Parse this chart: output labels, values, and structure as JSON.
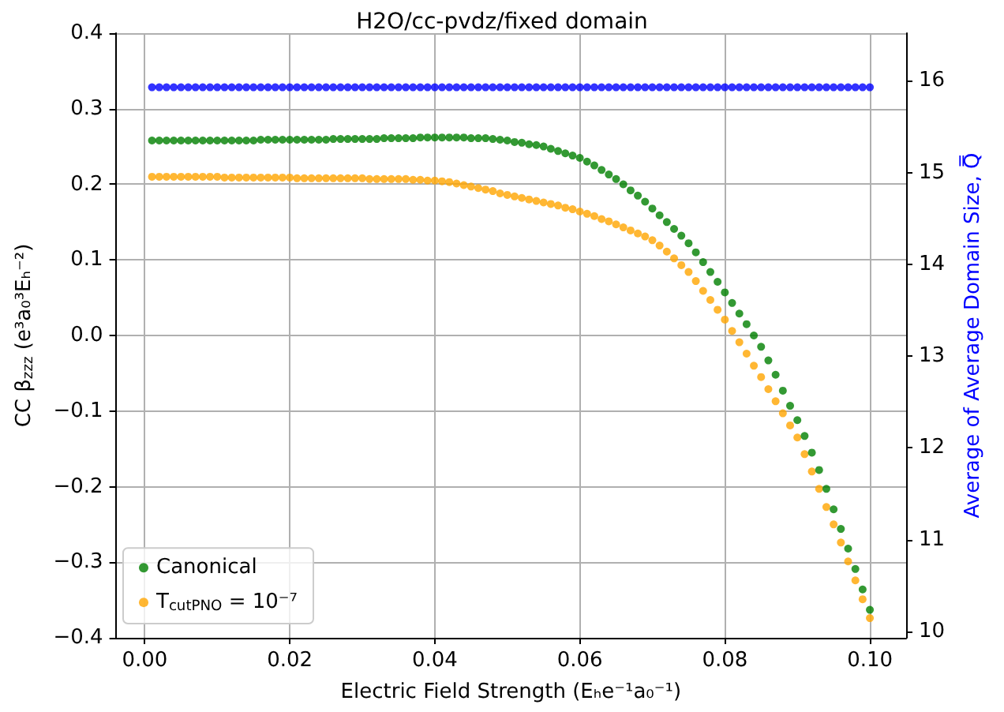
{
  "chart_data": {
    "type": "scatter",
    "title": "H2O/cc-pvdz/fixed domain",
    "xlabel": "Electric Field Strength (Eₕe⁻¹a₀⁻¹)",
    "ylabel": "CC β$_{zzz}$ (e³a₀³Eₕ⁻²)",
    "y2label": "Average of Average Domain Size, Q̿",
    "x": [
      0.001,
      0.002,
      0.003,
      0.004,
      0.005,
      0.006,
      0.007,
      0.008,
      0.009,
      0.01,
      0.011,
      0.012,
      0.013,
      0.014,
      0.015,
      0.016,
      0.017,
      0.018,
      0.019,
      0.02,
      0.021,
      0.022,
      0.023,
      0.024,
      0.025,
      0.026,
      0.027,
      0.028,
      0.029,
      0.03,
      0.031,
      0.032,
      0.033,
      0.034,
      0.035,
      0.036,
      0.037,
      0.038,
      0.039,
      0.04,
      0.041,
      0.042,
      0.043,
      0.044,
      0.045,
      0.046,
      0.047,
      0.048,
      0.049,
      0.05,
      0.051,
      0.052,
      0.053,
      0.054,
      0.055,
      0.056,
      0.057,
      0.058,
      0.059,
      0.06,
      0.061,
      0.062,
      0.063,
      0.064,
      0.065,
      0.066,
      0.067,
      0.068,
      0.069,
      0.07,
      0.071,
      0.072,
      0.073,
      0.074,
      0.075,
      0.076,
      0.077,
      0.078,
      0.079,
      0.08,
      0.081,
      0.082,
      0.083,
      0.084,
      0.085,
      0.086,
      0.087,
      0.088,
      0.089,
      0.09,
      0.091,
      0.092,
      0.093,
      0.094,
      0.095,
      0.096,
      0.097,
      0.098,
      0.099,
      0.1
    ],
    "series": [
      {
        "name": "Canonical",
        "color": "#008000",
        "values": [
          0.258,
          0.258,
          0.258,
          0.258,
          0.258,
          0.258,
          0.258,
          0.258,
          0.258,
          0.258,
          0.258,
          0.258,
          0.258,
          0.258,
          0.258,
          0.259,
          0.259,
          0.259,
          0.259,
          0.259,
          0.259,
          0.259,
          0.259,
          0.259,
          0.259,
          0.26,
          0.26,
          0.26,
          0.26,
          0.26,
          0.26,
          0.26,
          0.261,
          0.261,
          0.261,
          0.261,
          0.261,
          0.262,
          0.262,
          0.262,
          0.262,
          0.262,
          0.262,
          0.262,
          0.261,
          0.261,
          0.261,
          0.26,
          0.259,
          0.258,
          0.256,
          0.255,
          0.253,
          0.252,
          0.25,
          0.247,
          0.244,
          0.241,
          0.238,
          0.235,
          0.23,
          0.225,
          0.219,
          0.213,
          0.207,
          0.2,
          0.192,
          0.185,
          0.177,
          0.168,
          0.159,
          0.15,
          0.141,
          0.132,
          0.122,
          0.11,
          0.097,
          0.084,
          0.071,
          0.057,
          0.043,
          0.029,
          0.015,
          0.0,
          -0.015,
          -0.033,
          -0.052,
          -0.073,
          -0.093,
          -0.112,
          -0.133,
          -0.155,
          -0.178,
          -0.203,
          -0.23,
          -0.256,
          -0.282,
          -0.309,
          -0.336,
          -0.363
        ]
      },
      {
        "name": "T$_{cutPNO}$ = 10⁻⁷",
        "color": "#ffa500",
        "values": [
          0.21,
          0.21,
          0.21,
          0.21,
          0.21,
          0.21,
          0.21,
          0.21,
          0.21,
          0.21,
          0.209,
          0.209,
          0.209,
          0.209,
          0.209,
          0.209,
          0.209,
          0.209,
          0.209,
          0.209,
          0.208,
          0.208,
          0.208,
          0.208,
          0.208,
          0.208,
          0.208,
          0.208,
          0.208,
          0.208,
          0.207,
          0.207,
          0.207,
          0.207,
          0.207,
          0.207,
          0.206,
          0.206,
          0.205,
          0.205,
          0.204,
          0.203,
          0.201,
          0.199,
          0.197,
          0.195,
          0.193,
          0.191,
          0.188,
          0.186,
          0.184,
          0.182,
          0.18,
          0.178,
          0.176,
          0.174,
          0.172,
          0.169,
          0.167,
          0.164,
          0.161,
          0.158,
          0.154,
          0.151,
          0.147,
          0.143,
          0.139,
          0.135,
          0.131,
          0.126,
          0.119,
          0.111,
          0.102,
          0.093,
          0.084,
          0.072,
          0.059,
          0.047,
          0.034,
          0.021,
          0.006,
          -0.009,
          -0.024,
          -0.04,
          -0.055,
          -0.071,
          -0.087,
          -0.103,
          -0.119,
          -0.135,
          -0.157,
          -0.18,
          -0.203,
          -0.227,
          -0.25,
          -0.274,
          -0.299,
          -0.324,
          -0.349,
          -0.374
        ]
      },
      {
        "color": "#0000ff",
        "axis": "y2",
        "values": [
          15.93,
          15.93,
          15.93,
          15.93,
          15.93,
          15.93,
          15.93,
          15.93,
          15.93,
          15.93,
          15.93,
          15.93,
          15.93,
          15.93,
          15.93,
          15.93,
          15.93,
          15.93,
          15.93,
          15.93,
          15.93,
          15.93,
          15.93,
          15.93,
          15.93,
          15.93,
          15.93,
          15.93,
          15.93,
          15.93,
          15.93,
          15.93,
          15.93,
          15.93,
          15.93,
          15.93,
          15.93,
          15.93,
          15.93,
          15.93,
          15.93,
          15.93,
          15.93,
          15.93,
          15.93,
          15.93,
          15.93,
          15.93,
          15.93,
          15.93,
          15.93,
          15.93,
          15.93,
          15.93,
          15.93,
          15.93,
          15.93,
          15.93,
          15.93,
          15.93,
          15.93,
          15.93,
          15.93,
          15.93,
          15.93,
          15.93,
          15.93,
          15.93,
          15.93,
          15.93,
          15.93,
          15.93,
          15.93,
          15.93,
          15.93,
          15.93,
          15.93,
          15.93,
          15.93,
          15.93,
          15.93,
          15.93,
          15.93,
          15.93,
          15.93,
          15.93,
          15.93,
          15.93,
          15.93,
          15.93,
          15.93,
          15.93,
          15.93,
          15.93,
          15.93,
          15.93,
          15.93,
          15.93,
          15.93,
          15.93
        ]
      }
    ],
    "xlim": [
      -0.004,
      0.105
    ],
    "xticks": [
      {
        "value": 0,
        "label": "0.00"
      },
      0.02,
      0.04,
      0.06,
      0.08,
      {
        "value": 0.1,
        "label": "0.10"
      }
    ],
    "ylim": [
      -0.4,
      0.4
    ],
    "yticks": [
      {
        "value": -0.4,
        "label": "−0.4"
      },
      {
        "value": -0.3,
        "label": "−0.3"
      },
      {
        "value": -0.2,
        "label": "−0.2"
      },
      {
        "value": -0.1,
        "label": "−0.1"
      },
      {
        "value": 0,
        "label": "0.0"
      },
      0.1,
      0.2,
      0.3,
      0.4
    ],
    "y2lim": [
      9.93,
      16.52
    ],
    "y2ticks": [
      10,
      11,
      12,
      13,
      14,
      15,
      16
    ],
    "grid": true,
    "legend": "bottom left",
    "marker": "circle"
  }
}
